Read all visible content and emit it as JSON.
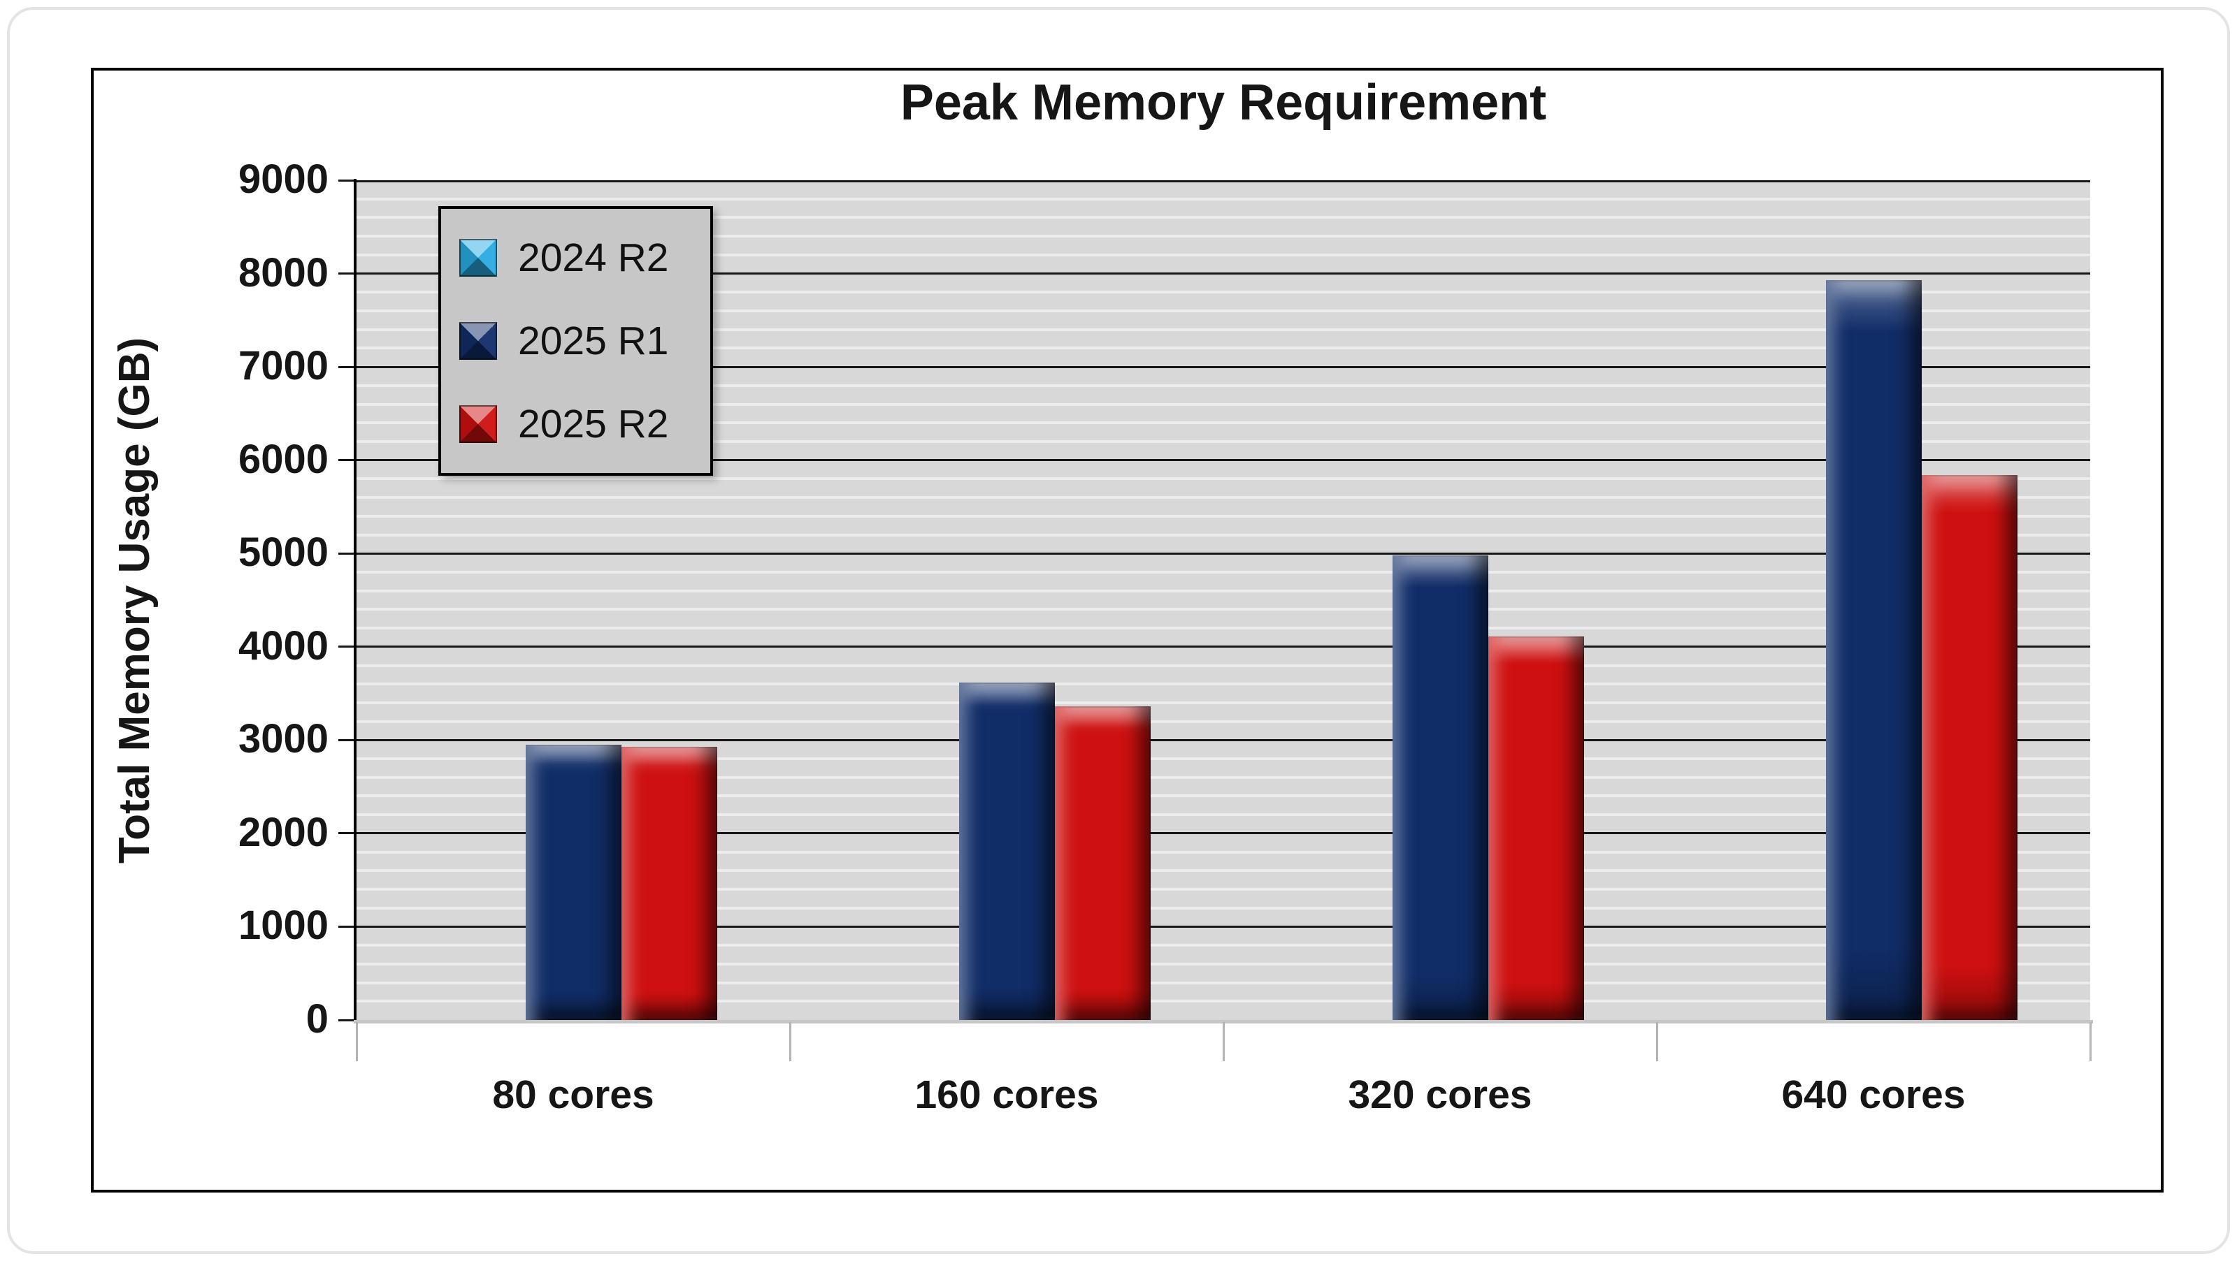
{
  "chart_data": {
    "type": "bar",
    "title": "Peak Memory Requirement",
    "ylabel": "Total Memory Usage (GB)",
    "xlabel": "",
    "categories": [
      "80 cores",
      "160 cores",
      "320 cores",
      "640 cores"
    ],
    "series": [
      {
        "name": "2024 R2",
        "color": "#29ABE2",
        "values": [
          0,
          0,
          0,
          0
        ]
      },
      {
        "name": "2025 R1",
        "color": "#112D68",
        "values": [
          2950,
          3620,
          4980,
          7930
        ]
      },
      {
        "name": "2025 R2",
        "color": "#CE1010",
        "values": [
          2930,
          3360,
          4110,
          5840
        ]
      }
    ],
    "ylim": [
      0,
      9000
    ],
    "major_unit": 1000,
    "minor_unit": 200,
    "yticks": [
      "0",
      "1000",
      "2000",
      "3000",
      "4000",
      "5000",
      "6000",
      "7000",
      "8000",
      "9000"
    ],
    "legend_position": "inside-top-left",
    "grid": {
      "plot_background": "#d8d8d8",
      "major_color": "#161616",
      "minor_color": "#ececec"
    }
  }
}
